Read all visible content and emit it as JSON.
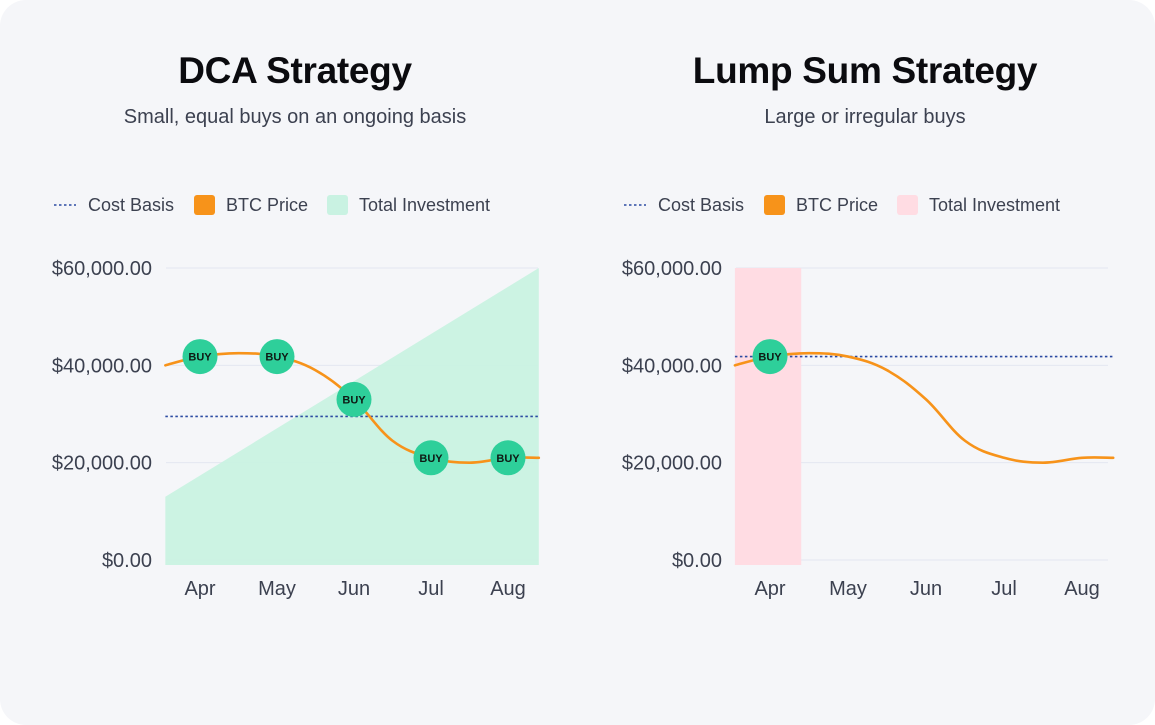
{
  "chart_data": [
    {
      "type": "line",
      "title": "DCA Strategy",
      "subtitle": "Small, equal buys on an ongoing basis",
      "categories": [
        "Apr",
        "May",
        "Jun",
        "Jul",
        "Aug"
      ],
      "ylim": [
        0,
        60000
      ],
      "yticks": [
        "$0.00",
        "$20,000.00",
        "$40,000.00",
        "$60,000.00"
      ],
      "yticks_values": [
        0,
        20000,
        40000,
        60000
      ],
      "legend_position": "top",
      "grid": true,
      "legend": [
        {
          "label": "Cost Basis",
          "kind": "dotted-line",
          "color": "#2b4aa2"
        },
        {
          "label": "BTC Price",
          "kind": "swatch",
          "color": "#f7931a"
        },
        {
          "label": "Total Investment",
          "kind": "swatch",
          "color": "#c9f2e2"
        }
      ],
      "series": [
        {
          "name": "BTC Price",
          "kind": "line",
          "color": "#f7931a",
          "x": [
            -0.45,
            0,
            0.5,
            1,
            1.5,
            2,
            2.5,
            3,
            3.5,
            4,
            4.4
          ],
          "values": [
            40000,
            41800,
            42500,
            41800,
            39000,
            33000,
            24500,
            21000,
            20000,
            21000,
            21000
          ]
        },
        {
          "name": "Total Investment",
          "kind": "area",
          "color": "#c9f2e2",
          "x": [
            -0.45,
            4.4
          ],
          "values": [
            13000,
            60000
          ]
        },
        {
          "name": "Cost Basis",
          "kind": "dotted",
          "color": "#2b4aa2",
          "x": [
            -0.45,
            4.4
          ],
          "values": [
            29500,
            29500
          ]
        }
      ],
      "buys": [
        {
          "x": 0,
          "value": 41800,
          "label": "BUY"
        },
        {
          "x": 1,
          "value": 41800,
          "label": "BUY"
        },
        {
          "x": 2,
          "value": 33000,
          "label": "BUY"
        },
        {
          "x": 3,
          "value": 21000,
          "label": "BUY"
        },
        {
          "x": 4,
          "value": 21000,
          "label": "BUY"
        }
      ]
    },
    {
      "type": "line",
      "title": "Lump Sum Strategy",
      "subtitle": "Large or irregular buys",
      "categories": [
        "Apr",
        "May",
        "Jun",
        "Jul",
        "Aug"
      ],
      "ylim": [
        0,
        60000
      ],
      "yticks": [
        "$0.00",
        "$20,000.00",
        "$40,000.00",
        "$60,000.00"
      ],
      "yticks_values": [
        0,
        20000,
        40000,
        60000
      ],
      "legend_position": "top",
      "grid": true,
      "legend": [
        {
          "label": "Cost Basis",
          "kind": "dotted-line",
          "color": "#2b4aa2"
        },
        {
          "label": "BTC Price",
          "kind": "swatch",
          "color": "#f7931a"
        },
        {
          "label": "Total Investment",
          "kind": "swatch",
          "color": "#ffdce3"
        }
      ],
      "series": [
        {
          "name": "BTC Price",
          "kind": "line",
          "color": "#f7931a",
          "x": [
            -0.45,
            0,
            0.5,
            1,
            1.5,
            2,
            2.5,
            3,
            3.5,
            4,
            4.4
          ],
          "values": [
            40000,
            41800,
            42500,
            41800,
            39000,
            33000,
            24500,
            21000,
            20000,
            21000,
            21000
          ]
        },
        {
          "name": "Total Investment",
          "kind": "band",
          "color": "#ffdce3",
          "x": [
            -0.45,
            0.4
          ],
          "values": [
            60000,
            60000
          ]
        },
        {
          "name": "Cost Basis",
          "kind": "dotted",
          "color": "#2b4aa2",
          "x": [
            -0.45,
            4.4
          ],
          "values": [
            41800,
            41800
          ]
        }
      ],
      "buys": [
        {
          "x": 0,
          "value": 41800,
          "label": "BUY"
        }
      ]
    }
  ],
  "colors": {
    "buy_marker": "#2ecf9a",
    "grid": "#e3e7f1",
    "axis_text": "#3c4150"
  }
}
